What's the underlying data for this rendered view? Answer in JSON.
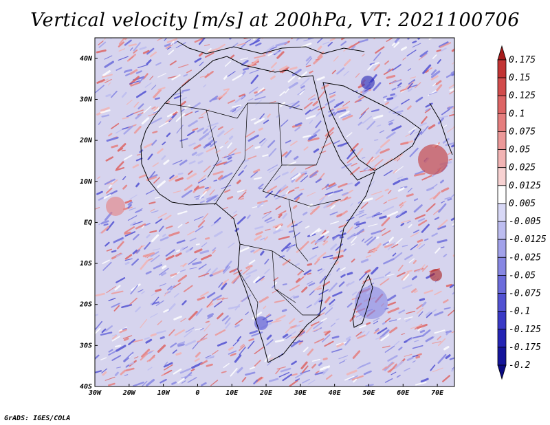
{
  "title": "Vertical velocity [m/s] at 200hPa, VT: 2021100706",
  "credit": "GrADS: IGES/COLA",
  "map": {
    "lon_range": [
      -30,
      75
    ],
    "lat_range": [
      -40,
      45
    ],
    "lat_labels": [
      "40N",
      "30N",
      "20N",
      "10N",
      "EQ",
      "10S",
      "20S",
      "30S",
      "40S"
    ],
    "lat_values": [
      40,
      30,
      20,
      10,
      0,
      -10,
      -20,
      -30,
      -40
    ],
    "lon_labels": [
      "30W",
      "20W",
      "10W",
      "0",
      "10E",
      "20E",
      "30E",
      "40E",
      "50E",
      "60E",
      "70E"
    ],
    "lon_values": [
      -30,
      -20,
      -10,
      0,
      10,
      20,
      30,
      40,
      50,
      60,
      70
    ]
  },
  "colorbar": {
    "levels": [
      "0.175",
      "0.15",
      "0.125",
      "0.1",
      "0.075",
      "0.05",
      "0.025",
      "0.0125",
      "0.005",
      "-0.005",
      "-0.0125",
      "-0.025",
      "-0.05",
      "-0.075",
      "-0.1",
      "-0.125",
      "-0.175",
      "-0.2"
    ],
    "colors": [
      "#a61c1c",
      "#c23434",
      "#d24c4c",
      "#dd6565",
      "#e57e7e",
      "#ec9999",
      "#f2b4b4",
      "#f8d2d2",
      "#ffffff",
      "#d8d8f6",
      "#bdbdf0",
      "#a2a2ea",
      "#8787e3",
      "#6c6cdb",
      "#5252d2",
      "#3939c6",
      "#2424b4",
      "#14149a",
      "#0a0a82"
    ]
  }
}
